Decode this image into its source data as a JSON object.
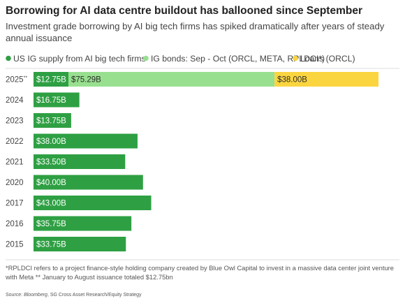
{
  "chart_data": {
    "type": "bar",
    "orientation": "horizontal",
    "stacked": true,
    "title": "Borrowing for AI data centre buildout has ballooned since September",
    "subtitle_line1": "Investment grade borrowing by AI big tech firms has spiked dramatically after years of steady",
    "subtitle_line2": "annual issuance",
    "categories": [
      "2025**",
      "2024",
      "2023",
      "2022",
      "2021",
      "2020",
      "2017",
      "2016",
      "2015"
    ],
    "series": [
      {
        "name": "US IG supply from AI big tech firms",
        "color": "#2ea043",
        "values": [
          12.75,
          16.75,
          13.75,
          38.0,
          33.5,
          40.0,
          43.0,
          35.75,
          33.75
        ],
        "labels": [
          "$12.75B",
          "$16.75B",
          "$13.75B",
          "$38.00B",
          "$33.50B",
          "$40.00B",
          "$43.00B",
          "$35.75B",
          "$33.75B"
        ]
      },
      {
        "name": "IG bonds: Sep - Oct (ORCL, META, RPLDCI*)",
        "color": "#98e08f",
        "values": [
          75.29,
          null,
          null,
          null,
          null,
          null,
          null,
          null,
          null
        ],
        "labels": [
          "$75.29B",
          "",
          "",
          "",
          "",
          "",
          "",
          "",
          ""
        ]
      },
      {
        "name": "Loans (ORCL)",
        "color": "#fbd540",
        "values": [
          38.0,
          null,
          null,
          null,
          null,
          null,
          null,
          null,
          null
        ],
        "labels": [
          "$38.00B",
          "",
          "",
          "",
          "",
          "",
          "",
          "",
          ""
        ]
      }
    ],
    "legend_placement": "top-left",
    "grid": false,
    "footnote_line1": "*RPLDCI refers to a project finance-style holding company created by Blue Owl Capital to invest in a massive data center joint venture",
    "footnote_line2": "with Meta ** January to August issuance totaled $12.75bn",
    "source_prefix": "Source: ",
    "source_italic": "Bloomberg",
    "source_rest": ", SG Cross Asset Research/Equity Strategy"
  }
}
